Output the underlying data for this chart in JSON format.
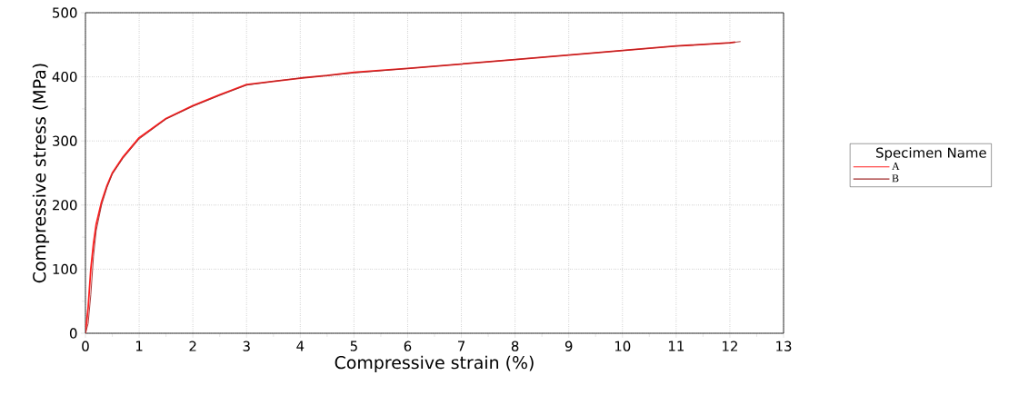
{
  "chart_data": {
    "type": "line",
    "xlabel": "Compressive strain (%)",
    "ylabel": "Compressive stress (MPa)",
    "legend_title": "Specimen Name",
    "xlim": [
      0,
      13
    ],
    "ylim": [
      0,
      500
    ],
    "xticks": [
      0,
      1,
      2,
      3,
      4,
      5,
      6,
      7,
      8,
      9,
      10,
      11,
      12,
      13
    ],
    "yticks": [
      0,
      100,
      200,
      300,
      400,
      500
    ],
    "grid": true,
    "legend": "right",
    "marker": "none",
    "line_style": "solid",
    "series": [
      {
        "name": "A",
        "color": "#ff2020",
        "x": [
          0,
          0.05,
          0.1,
          0.15,
          0.2,
          0.3,
          0.4,
          0.5,
          0.7,
          1.0,
          1.5,
          2.0,
          2.5,
          3.0,
          3.5,
          4.0,
          4.5,
          5.0,
          6.0,
          7.0,
          8.0,
          9.0,
          10.0,
          11.0,
          12.0,
          12.1
        ],
        "values": [
          0,
          40,
          100,
          140,
          170,
          205,
          230,
          250,
          275,
          305,
          335,
          355,
          372,
          388,
          393,
          398,
          402,
          407,
          413,
          420,
          427,
          434,
          441,
          448,
          453,
          454
        ]
      },
      {
        "name": "B",
        "color": "#a02828",
        "x": [
          0,
          0.05,
          0.1,
          0.15,
          0.2,
          0.3,
          0.4,
          0.5,
          0.7,
          1.0,
          1.5,
          2.0,
          2.5,
          3.0,
          3.5,
          4.0,
          4.5,
          5.0,
          6.0,
          7.0,
          8.0,
          9.0,
          10.0,
          11.0,
          12.0,
          12.2
        ],
        "values": [
          0,
          15,
          60,
          120,
          160,
          200,
          227,
          248,
          273,
          303,
          334,
          354,
          371,
          387,
          393,
          398,
          402,
          406,
          413,
          420,
          427,
          434,
          441,
          448,
          453,
          455
        ]
      }
    ]
  }
}
